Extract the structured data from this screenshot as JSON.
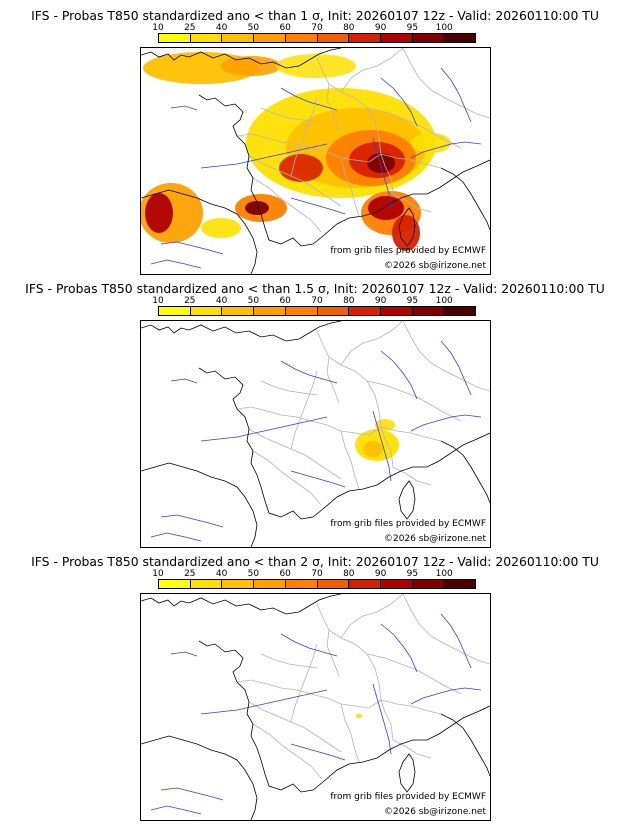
{
  "colorbar": {
    "labels": [
      "10",
      "25",
      "40",
      "50",
      "60",
      "70",
      "80",
      "90",
      "95",
      "100"
    ],
    "colors": [
      "#ffff00",
      "#ffe000",
      "#ffc000",
      "#ffa000",
      "#ff8000",
      "#f06000",
      "#d82000",
      "#b00000",
      "#800000",
      "#4a0000"
    ]
  },
  "panels": [
    {
      "title": "IFS - Probas T850  standardized ano < than 1 σ, Init: 20260107 12z - Valid: 20260110:00 TU",
      "source_credit": "from grib files provided by ECMWF",
      "copyright": "©2026 sb@irizone.net"
    },
    {
      "title": "IFS - Probas T850  standardized ano < than 1.5 σ, Init: 20260107 12z - Valid: 20260110:00 TU",
      "source_credit": "from grib files provided by ECMWF",
      "copyright": "©2026 sb@irizone.net"
    },
    {
      "title": "IFS - Probas T850  standardized ano < than 2 σ, Init: 20260107 12z - Valid: 20260110:00 TU",
      "source_credit": "from grib files provided by ECMWF",
      "copyright": "©2026 sb@irizone.net"
    }
  ],
  "style": {
    "coast_color": "#000000",
    "border_color": "#b4b4b4",
    "river_color": "#3b3be0"
  }
}
